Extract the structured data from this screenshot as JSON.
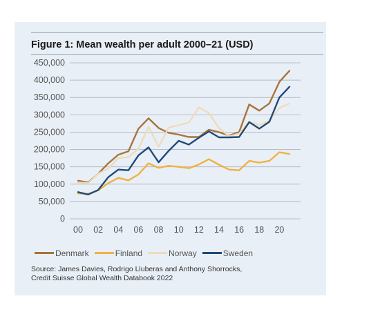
{
  "figure": {
    "title": "Figure 1: Mean wealth per adult 2000–21 (USD)",
    "source_lines": [
      "Source: James Davies, Rodrigo Lluberas and Anthony Shorrocks,",
      "Credit Suisse Global Wealth Databook 2022"
    ]
  },
  "chart_data": {
    "type": "line",
    "title": "Figure 1: Mean wealth per adult 2000–21 (USD)",
    "xlabel": "",
    "ylabel": "",
    "x": [
      2000,
      2001,
      2002,
      2003,
      2004,
      2005,
      2006,
      2007,
      2008,
      2009,
      2010,
      2011,
      2012,
      2013,
      2014,
      2015,
      2016,
      2017,
      2018,
      2019,
      2020,
      2021
    ],
    "x_ticks": [
      2000,
      2002,
      2004,
      2006,
      2008,
      2010,
      2012,
      2014,
      2016,
      2018,
      2020
    ],
    "x_tick_labels": [
      "00",
      "02",
      "04",
      "06",
      "08",
      "10",
      "12",
      "14",
      "16",
      "18",
      "20"
    ],
    "xlim": [
      2000,
      2021
    ],
    "ylim": [
      0,
      450000
    ],
    "y_ticks": [
      0,
      50000,
      100000,
      150000,
      200000,
      250000,
      300000,
      350000,
      400000,
      450000
    ],
    "y_tick_labels": [
      "0",
      "50,000",
      "100,000",
      "150,000",
      "200,000",
      "250,000",
      "300,000",
      "350,000",
      "400,000",
      "450,000"
    ],
    "grid": true,
    "legend_position": "bottom",
    "series": [
      {
        "name": "Denmark",
        "color": "#a8733a",
        "values": [
          110000,
          105000,
          130000,
          160000,
          185000,
          195000,
          260000,
          290000,
          262000,
          248000,
          243000,
          236000,
          236000,
          257000,
          250000,
          240000,
          250000,
          330000,
          312000,
          333000,
          395000,
          427000
        ]
      },
      {
        "name": "Finland",
        "color": "#f0b23f",
        "values": [
          73000,
          72000,
          82000,
          103000,
          118000,
          111000,
          128000,
          160000,
          147000,
          153000,
          150000,
          146000,
          157000,
          172000,
          156000,
          142000,
          140000,
          167000,
          162000,
          167000,
          192000,
          187000
        ]
      },
      {
        "name": "Norway",
        "color": "#eddcbc",
        "values": [
          105000,
          103000,
          130000,
          145000,
          175000,
          178000,
          202000,
          265000,
          208000,
          263000,
          270000,
          278000,
          321000,
          305000,
          262000,
          238000,
          246000,
          280000,
          270000,
          283000,
          320000,
          333000
        ]
      },
      {
        "name": "Sweden",
        "color": "#1f4a78",
        "values": [
          77000,
          70000,
          83000,
          120000,
          142000,
          140000,
          183000,
          206000,
          163000,
          196000,
          225000,
          214000,
          234000,
          252000,
          235000,
          235000,
          236000,
          279000,
          260000,
          280000,
          350000,
          381000
        ]
      }
    ]
  }
}
